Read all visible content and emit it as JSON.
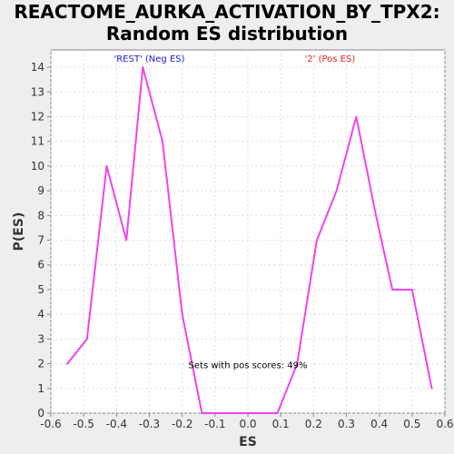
{
  "chart_data": {
    "type": "line",
    "title": "REACTOME_AURKA_ACTIVATION_BY_TPX2:",
    "subtitle": "Random ES distribution",
    "xlabel": "ES",
    "ylabel": "P(ES)",
    "xlim": [
      -0.6,
      0.6
    ],
    "ylim": [
      0,
      14.7
    ],
    "xticks": [
      "-0.6",
      "-0.5",
      "-0.4",
      "-0.3",
      "-0.2",
      "-0.1",
      "0.0",
      "0.1",
      "0.2",
      "0.3",
      "0.4",
      "0.5",
      "0.6"
    ],
    "yticks": [
      "0",
      "1",
      "2",
      "3",
      "4",
      "5",
      "6",
      "7",
      "8",
      "9",
      "10",
      "11",
      "12",
      "13",
      "14"
    ],
    "grid": true,
    "series": [
      {
        "color": "#ee44ee",
        "x": [
          -0.55,
          -0.49,
          -0.43,
          -0.37,
          -0.32,
          -0.26,
          -0.2,
          -0.14,
          -0.08,
          -0.03,
          0.03,
          0.09,
          0.15,
          0.21,
          0.27,
          0.33,
          0.39,
          0.44,
          0.5,
          0.56
        ],
        "y": [
          2,
          3,
          10,
          7,
          14,
          11,
          4,
          0,
          0,
          0,
          0,
          0,
          2,
          7,
          9,
          12,
          8,
          5,
          5,
          1
        ]
      }
    ],
    "annotations": {
      "neg_label": "'REST' (Neg ES)",
      "neg_color": "#2222cc",
      "pos_label": "'2' (Pos ES)",
      "pos_color": "#dd2222",
      "pos_scores": "Sets with pos scores: 49%"
    }
  }
}
